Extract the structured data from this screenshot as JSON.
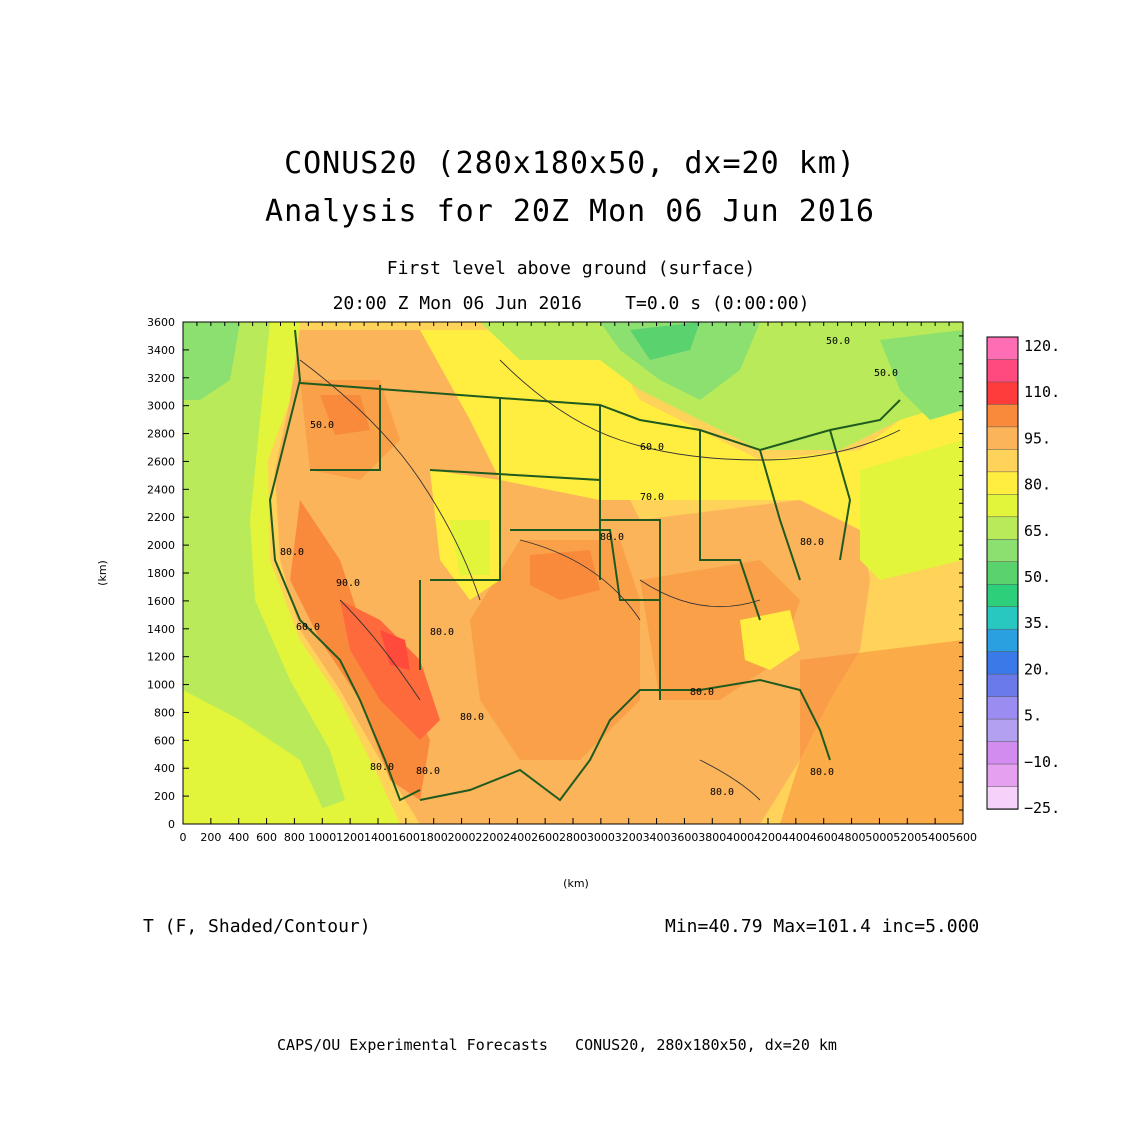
{
  "header": {
    "title_line1": "CONUS20 (280x180x50, dx=20 km)",
    "title_line2": "Analysis for 20Z Mon 06 Jun 2016",
    "subtitle_line1": "First level above ground (surface)",
    "subtitle_line2": "20:00 Z Mon 06 Jun 2016    T=0.0 s (0:00:00)"
  },
  "axes": {
    "x_unit": "(km)",
    "y_unit": "(km)",
    "x_ticks": [
      "0",
      "200",
      "400",
      "600",
      "800",
      "1000",
      "1200",
      "1400",
      "1600",
      "1800",
      "2000",
      "2200",
      "2400",
      "2600",
      "2800",
      "3000",
      "3200",
      "3400",
      "3600",
      "3800",
      "4000",
      "4200",
      "4400",
      "4600",
      "4800",
      "5000",
      "5200",
      "5400",
      "5600"
    ],
    "y_ticks": [
      "0",
      "200",
      "400",
      "600",
      "800",
      "1000",
      "1200",
      "1400",
      "1600",
      "1800",
      "2000",
      "2200",
      "2400",
      "2600",
      "2800",
      "3000",
      "3200",
      "3400",
      "3600"
    ]
  },
  "colorbar": {
    "labels": [
      "120.",
      "110.",
      "95.",
      "80.",
      "65.",
      "50.",
      "35.",
      "20.",
      "5.",
      "−10.",
      "−25."
    ],
    "colors": [
      "#ff6eb4",
      "#ff4a80",
      "#ff3c3c",
      "#f98a3c",
      "#fbb45a",
      "#ffd25a",
      "#ffee40",
      "#e2f53a",
      "#b8ea5a",
      "#8ce070",
      "#5ad26e",
      "#2ecf7a",
      "#28c8c0",
      "#2aa0e0",
      "#3a7ae8",
      "#6a7ae8",
      "#9a8cf0",
      "#b4a0f0",
      "#d28cf0",
      "#e6a0f0",
      "#f6d2fa"
    ]
  },
  "contour_labels": [
    "50.0",
    "50.0",
    "60.0",
    "70.0",
    "80.0",
    "80.0",
    "80.0",
    "80.0",
    "80.0",
    "80.0",
    "80.0",
    "80.0",
    "90.0",
    "60.0",
    "50.0",
    "80.0",
    "80.0"
  ],
  "info": {
    "variable": "T (F, Shaded/Contour)",
    "stats": "Min=40.79 Max=101.4 inc=5.000"
  },
  "footer": "CAPS/OU Experimental Forecasts   CONUS20, 280x180x50, dx=20 km"
}
